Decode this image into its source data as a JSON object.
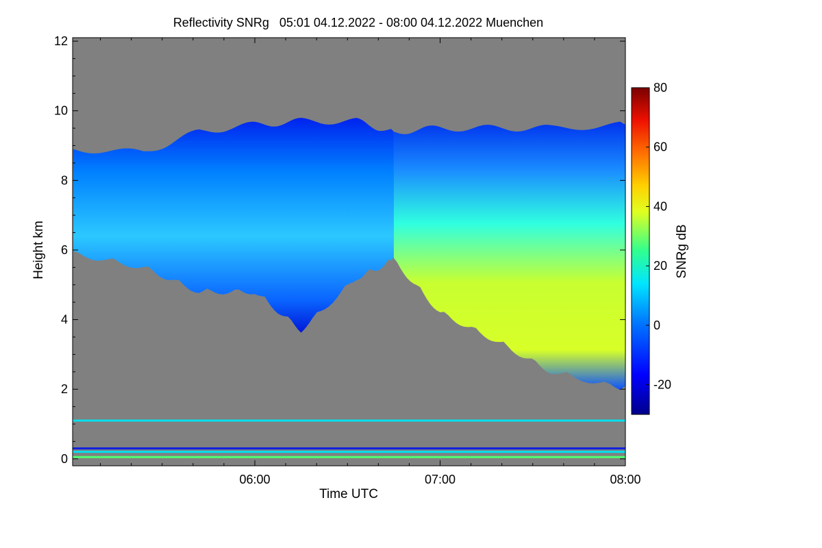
{
  "chart_data": {
    "type": "heatmap",
    "title": "Reflectivity SNRg   05:01 04.12.2022 - 08:00 04.12.2022 Muenchen",
    "xlabel": "Time UTC",
    "ylabel": "Height km",
    "colorbar_label": "SNRg dB",
    "x_range_hours": [
      5.0167,
      8.0
    ],
    "x_ticks": [
      {
        "value": 6,
        "label": "06:00"
      },
      {
        "value": 7,
        "label": "07:00"
      },
      {
        "value": 8,
        "label": "08:00"
      }
    ],
    "x_minor_tick_minutes": 10,
    "ylim": [
      -0.2,
      12.1
    ],
    "y_ticks": [
      0,
      2,
      4,
      6,
      8,
      10,
      12
    ],
    "colorbar_range": [
      -30,
      80
    ],
    "colorbar_ticks": [
      -20,
      0,
      20,
      40,
      60,
      80
    ],
    "background_color": "#808080",
    "cloud_layer": {
      "description_points": [
        {
          "t": 5.02,
          "top": 8.9,
          "bottom": 6.0,
          "snr_core": 5
        },
        {
          "t": 5.4,
          "top": 8.8,
          "bottom": 5.6,
          "snr_core": 8
        },
        {
          "t": 5.7,
          "top": 9.4,
          "bottom": 4.9,
          "snr_core": 8
        },
        {
          "t": 6.0,
          "top": 9.6,
          "bottom": 4.9,
          "snr_core": 6
        },
        {
          "t": 6.25,
          "top": 9.7,
          "bottom": 3.8,
          "snr_core": 6
        },
        {
          "t": 6.55,
          "top": 9.7,
          "bottom": 5.3,
          "snr_core": 6
        },
        {
          "t": 6.75,
          "top": 9.4,
          "bottom": 5.8,
          "snr_core": 10
        },
        {
          "t": 7.0,
          "top": 9.5,
          "bottom": 4.3,
          "snr_core": 28
        },
        {
          "t": 7.3,
          "top": 9.5,
          "bottom": 3.5,
          "snr_core": 32
        },
        {
          "t": 7.6,
          "top": 9.5,
          "bottom": 2.6,
          "snr_core": 34
        },
        {
          "t": 8.0,
          "top": 9.6,
          "bottom": 2.1,
          "snr_core": 35
        }
      ]
    },
    "clutter_lines": [
      {
        "height": 1.1,
        "snr": 10
      },
      {
        "height": 0.3,
        "snr": -25
      },
      {
        "height": 0.2,
        "snr": 10
      },
      {
        "height": 0.05,
        "snr": 25
      }
    ]
  }
}
